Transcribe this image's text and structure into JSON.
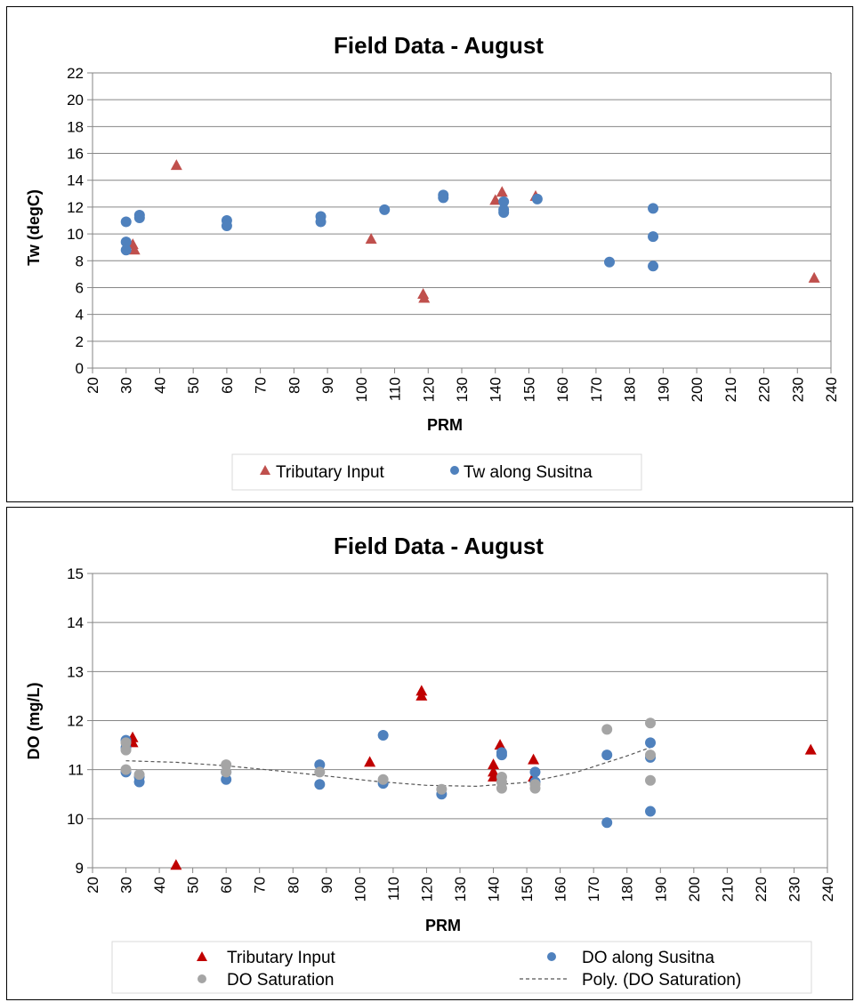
{
  "chart_data": [
    {
      "type": "scatter",
      "title": "Field Data - August",
      "xlabel": "PRM",
      "ylabel": "Tw (degC)",
      "xlim": [
        20,
        240
      ],
      "ylim": [
        0,
        22
      ],
      "xticks": [
        20,
        30,
        40,
        50,
        60,
        70,
        80,
        90,
        100,
        110,
        120,
        130,
        140,
        150,
        160,
        170,
        180,
        190,
        200,
        210,
        220,
        230,
        240
      ],
      "yticks": [
        0,
        2,
        4,
        6,
        8,
        10,
        12,
        14,
        16,
        18,
        20,
        22
      ],
      "grid": "horizontal",
      "legend_position": "bottom",
      "series": [
        {
          "name": "Tributary Input",
          "marker": "triangle",
          "color": "#C0504D",
          "points": [
            [
              32,
              9.2
            ],
            [
              32.5,
              8.8
            ],
            [
              45,
              15.1
            ],
            [
              103,
              9.6
            ],
            [
              118.5,
              5.5
            ],
            [
              118.8,
              5.2
            ],
            [
              140,
              12.5
            ],
            [
              142,
              13.1
            ],
            [
              152,
              12.8
            ],
            [
              235,
              6.7
            ]
          ]
        },
        {
          "name": "Tw along Susitna",
          "marker": "circle",
          "color": "#4F81BD",
          "points": [
            [
              30,
              10.9
            ],
            [
              30,
              9.4
            ],
            [
              30,
              8.8
            ],
            [
              34,
              11.4
            ],
            [
              34,
              11.2
            ],
            [
              60,
              11.0
            ],
            [
              60,
              10.6
            ],
            [
              88,
              11.3
            ],
            [
              88,
              10.9
            ],
            [
              107,
              11.8
            ],
            [
              124.5,
              12.9
            ],
            [
              124.5,
              12.7
            ],
            [
              142.5,
              12.4
            ],
            [
              142.5,
              11.8
            ],
            [
              142.5,
              11.6
            ],
            [
              152.5,
              12.6
            ],
            [
              174,
              7.9
            ],
            [
              187,
              11.9
            ],
            [
              187,
              9.8
            ],
            [
              187,
              7.6
            ]
          ]
        }
      ]
    },
    {
      "type": "scatter",
      "title": "Field Data - August",
      "xlabel": "PRM",
      "ylabel": "DO (mg/L)",
      "xlim": [
        20,
        240
      ],
      "ylim": [
        9,
        15
      ],
      "xticks": [
        20,
        30,
        40,
        50,
        60,
        70,
        80,
        90,
        100,
        110,
        120,
        130,
        140,
        150,
        160,
        170,
        180,
        190,
        200,
        210,
        220,
        230,
        240
      ],
      "yticks": [
        9,
        10,
        11,
        12,
        13,
        14,
        15
      ],
      "grid": "horizontal",
      "legend_position": "bottom",
      "series": [
        {
          "name": "Tributary Input",
          "marker": "triangle",
          "color": "#C00000",
          "points": [
            [
              32,
              11.65
            ],
            [
              32,
              11.55
            ],
            [
              45,
              9.05
            ],
            [
              103,
              11.15
            ],
            [
              118.5,
              12.6
            ],
            [
              118.5,
              12.5
            ],
            [
              140,
              11.1
            ],
            [
              140,
              10.95
            ],
            [
              140,
              10.85
            ],
            [
              142,
              11.5
            ],
            [
              152,
              11.2
            ],
            [
              152,
              10.85
            ],
            [
              235,
              11.4
            ]
          ]
        },
        {
          "name": "DO along Susitna",
          "marker": "circle",
          "color": "#4F81BD",
          "points": [
            [
              30,
              11.6
            ],
            [
              30,
              11.45
            ],
            [
              30,
              10.95
            ],
            [
              34,
              10.85
            ],
            [
              34,
              10.75
            ],
            [
              60,
              10.95
            ],
            [
              60,
              10.8
            ],
            [
              88,
              11.1
            ],
            [
              88,
              10.7
            ],
            [
              107,
              11.7
            ],
            [
              107,
              10.72
            ],
            [
              124.5,
              10.5
            ],
            [
              142.5,
              11.35
            ],
            [
              142.5,
              11.3
            ],
            [
              152.5,
              10.95
            ],
            [
              152.5,
              10.75
            ],
            [
              174,
              11.3
            ],
            [
              174,
              9.92
            ],
            [
              187,
              11.55
            ],
            [
              187,
              11.25
            ],
            [
              187,
              10.15
            ]
          ]
        },
        {
          "name": "DO Saturation",
          "marker": "circle",
          "color": "#A5A5A5",
          "points": [
            [
              30,
              11.55
            ],
            [
              30,
              11.4
            ],
            [
              30,
              11.0
            ],
            [
              34,
              10.9
            ],
            [
              60,
              11.1
            ],
            [
              60,
              10.95
            ],
            [
              88,
              10.95
            ],
            [
              107,
              10.8
            ],
            [
              124.5,
              10.6
            ],
            [
              142.5,
              10.85
            ],
            [
              142.5,
              10.75
            ],
            [
              142.5,
              10.62
            ],
            [
              152.5,
              10.7
            ],
            [
              152.5,
              10.62
            ],
            [
              174,
              11.82
            ],
            [
              187,
              11.95
            ],
            [
              187,
              11.3
            ],
            [
              187,
              10.78
            ]
          ]
        },
        {
          "name": "Poly. (DO Saturation)",
          "type": "trendline",
          "style": "dashed",
          "color": "#555555",
          "points": [
            [
              30,
              11.18
            ],
            [
              45,
              11.15
            ],
            [
              60,
              11.08
            ],
            [
              75,
              10.98
            ],
            [
              90,
              10.87
            ],
            [
              105,
              10.76
            ],
            [
              120,
              10.68
            ],
            [
              135,
              10.66
            ],
            [
              150,
              10.74
            ],
            [
              165,
              10.95
            ],
            [
              180,
              11.28
            ],
            [
              187,
              11.45
            ]
          ]
        }
      ]
    }
  ]
}
